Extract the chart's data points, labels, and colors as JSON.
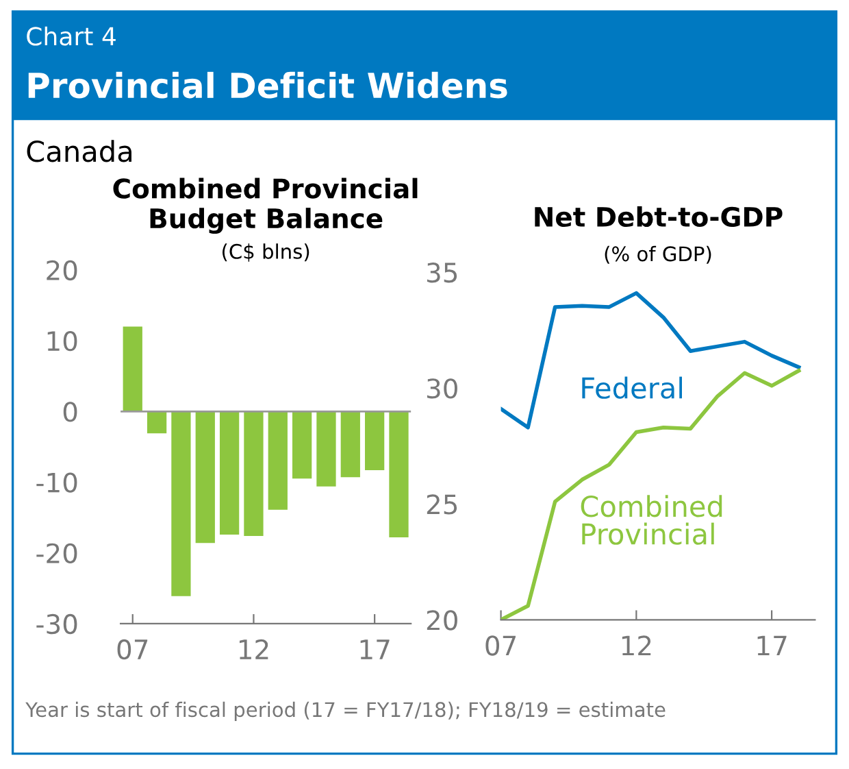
{
  "chart_data": [
    {
      "type": "other",
      "title": "Provincial Deficit Widens",
      "subtitle": "Canada",
      "color": "#0079c1",
      "annotations": [
        "Chart 4",
        "Year is start of fiscal period (17 = FY17/18); FY18/19 = estimate"
      ]
    },
    {
      "type": "bar",
      "title": "Combined Provincial\nBudget Balance",
      "subtitle": "(C$ blns)",
      "x": [
        7,
        8,
        9,
        10,
        11,
        12,
        13,
        14,
        15,
        16,
        17,
        18
      ],
      "series": [
        {
          "color": "#8dc63f",
          "values": [
            12,
            -3.1,
            -26.1,
            -18.6,
            -17.4,
            -17.6,
            -13.9,
            -9.5,
            -10.6,
            -9.3,
            -8.3,
            -17.8
          ]
        }
      ],
      "xlim": [
        6.5,
        18.5
      ],
      "xticks": [
        {
          "value": 7,
          "label": "07"
        },
        12,
        17
      ],
      "ylim": [
        -30,
        20
      ],
      "yticks": [
        -30,
        -20,
        -10,
        0,
        10,
        20
      ],
      "ref_lines": [
        {
          "axis": "y",
          "value": 0,
          "color": "#999999"
        }
      ],
      "grid": false,
      "legend": false
    },
    {
      "type": "line",
      "title": "Net Debt-to-GDP",
      "subtitle": "(% of GDP)",
      "x": [
        7,
        8,
        9,
        10,
        11,
        12,
        13,
        14,
        15,
        16,
        17,
        18
      ],
      "series": [
        {
          "name": "Federal",
          "color": "#0079c1",
          "values": [
            29.1,
            28.3,
            33.5,
            33.55,
            33.5,
            34.1,
            33.05,
            31.6,
            31.8,
            32.0,
            31.4,
            30.9
          ]
        },
        {
          "name": "Combined\nProvincial",
          "color": "#8dc63f",
          "values": [
            20.0,
            20.6,
            25.1,
            26.05,
            26.7,
            28.1,
            28.3,
            28.25,
            29.65,
            30.65,
            30.1,
            30.75
          ]
        }
      ],
      "xlim": [
        7,
        18.6
      ],
      "xticks": [
        {
          "value": 7,
          "label": "07"
        },
        12,
        17
      ],
      "ylim": [
        20,
        35
      ],
      "yticks": [
        20,
        25,
        30,
        35
      ],
      "grid": false,
      "legend": false,
      "marker": "none",
      "line_style": "solid"
    }
  ]
}
